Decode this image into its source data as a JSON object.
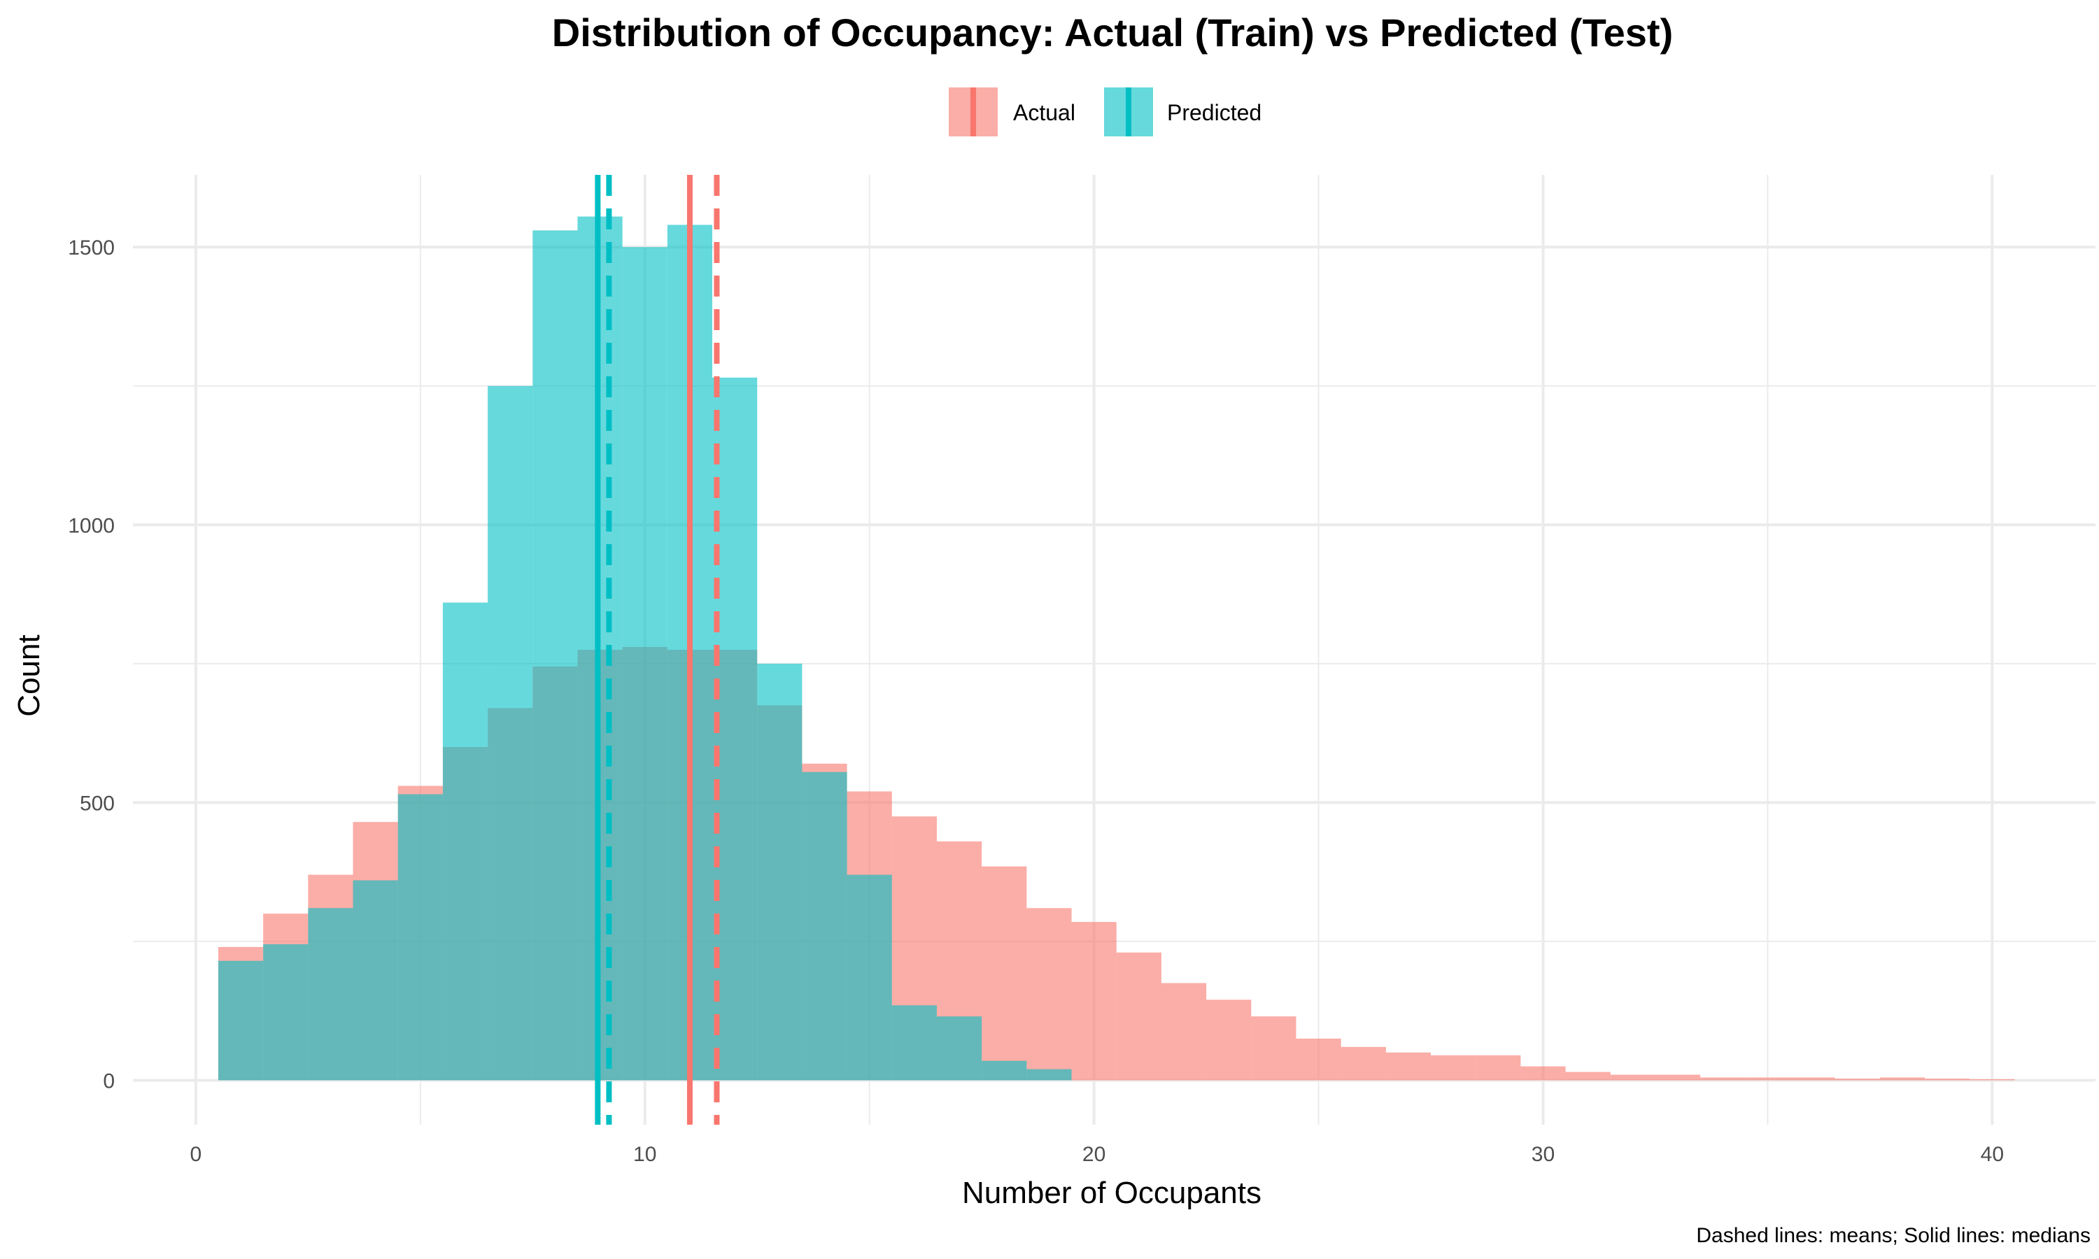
{
  "chart_data": {
    "type": "histogram",
    "title": "Distribution of Occupancy: Actual (Train) vs Predicted (Test)",
    "xlabel": "Number of Occupants",
    "ylabel": "Count",
    "caption": "Dashed lines: means; Solid lines: medians",
    "xlim": [
      -1.4,
      42.3
    ],
    "ylim": [
      -80,
      1630
    ],
    "x_ticks": [
      0,
      10,
      20,
      30,
      40
    ],
    "y_ticks": [
      0,
      500,
      1000,
      1500
    ],
    "x_tick_labels": [
      "0",
      "10",
      "20",
      "30",
      "40"
    ],
    "y_tick_labels": [
      "0",
      "500",
      "1000",
      "1500"
    ],
    "grid": true,
    "legend_position": "top",
    "bin_width": 1,
    "bins": [
      {
        "x_min": 0.5,
        "x_max": 1.5
      },
      {
        "x_min": 1.5,
        "x_max": 2.5
      },
      {
        "x_min": 2.5,
        "x_max": 3.5
      },
      {
        "x_min": 3.5,
        "x_max": 4.5
      },
      {
        "x_min": 4.5,
        "x_max": 5.5
      },
      {
        "x_min": 5.5,
        "x_max": 6.5
      },
      {
        "x_min": 6.5,
        "x_max": 7.5
      },
      {
        "x_min": 7.5,
        "x_max": 8.5
      },
      {
        "x_min": 8.5,
        "x_max": 9.5
      },
      {
        "x_min": 9.5,
        "x_max": 10.5
      },
      {
        "x_min": 10.5,
        "x_max": 11.5
      },
      {
        "x_min": 11.5,
        "x_max": 12.5
      },
      {
        "x_min": 12.5,
        "x_max": 13.5
      },
      {
        "x_min": 13.5,
        "x_max": 14.5
      },
      {
        "x_min": 14.5,
        "x_max": 15.5
      },
      {
        "x_min": 15.5,
        "x_max": 16.5
      },
      {
        "x_min": 16.5,
        "x_max": 17.5
      },
      {
        "x_min": 17.5,
        "x_max": 18.5
      },
      {
        "x_min": 18.5,
        "x_max": 19.5
      },
      {
        "x_min": 19.5,
        "x_max": 20.5
      },
      {
        "x_min": 20.5,
        "x_max": 21.5
      },
      {
        "x_min": 21.5,
        "x_max": 22.5
      },
      {
        "x_min": 22.5,
        "x_max": 23.5
      },
      {
        "x_min": 23.5,
        "x_max": 24.5
      },
      {
        "x_min": 24.5,
        "x_max": 25.5
      },
      {
        "x_min": 25.5,
        "x_max": 26.5
      },
      {
        "x_min": 26.5,
        "x_max": 27.5
      },
      {
        "x_min": 27.5,
        "x_max": 28.5
      },
      {
        "x_min": 28.5,
        "x_max": 29.5
      },
      {
        "x_min": 29.5,
        "x_max": 30.5
      },
      {
        "x_min": 30.5,
        "x_max": 31.5
      },
      {
        "x_min": 31.5,
        "x_max": 32.5
      },
      {
        "x_min": 32.5,
        "x_max": 33.5
      },
      {
        "x_min": 33.5,
        "x_max": 34.5
      },
      {
        "x_min": 34.5,
        "x_max": 35.5
      },
      {
        "x_min": 35.5,
        "x_max": 36.5
      },
      {
        "x_min": 36.5,
        "x_max": 37.5
      },
      {
        "x_min": 37.5,
        "x_max": 38.5
      },
      {
        "x_min": 38.5,
        "x_max": 39.5
      },
      {
        "x_min": 39.5,
        "x_max": 40.5
      }
    ],
    "series": [
      {
        "name": "Actual",
        "color": "#F8766D",
        "counts": [
          240,
          300,
          370,
          465,
          530,
          600,
          670,
          745,
          775,
          780,
          775,
          775,
          675,
          570,
          520,
          475,
          430,
          385,
          310,
          285,
          230,
          175,
          145,
          115,
          75,
          60,
          50,
          45,
          45,
          25,
          15,
          10,
          10,
          5,
          5,
          5,
          3,
          5,
          3,
          2
        ],
        "mean": 11.6,
        "median": 11.0
      },
      {
        "name": "Predicted",
        "color": "#00BFC4",
        "counts": [
          215,
          245,
          310,
          360,
          515,
          860,
          1250,
          1530,
          1555,
          1500,
          1540,
          1265,
          750,
          555,
          370,
          135,
          115,
          35,
          20,
          0,
          0,
          0,
          0,
          0,
          0,
          0,
          0,
          0,
          0,
          0,
          0,
          0,
          0,
          0,
          0,
          0,
          0,
          0,
          0,
          0
        ],
        "mean": 9.2,
        "median": 8.95
      }
    ]
  }
}
